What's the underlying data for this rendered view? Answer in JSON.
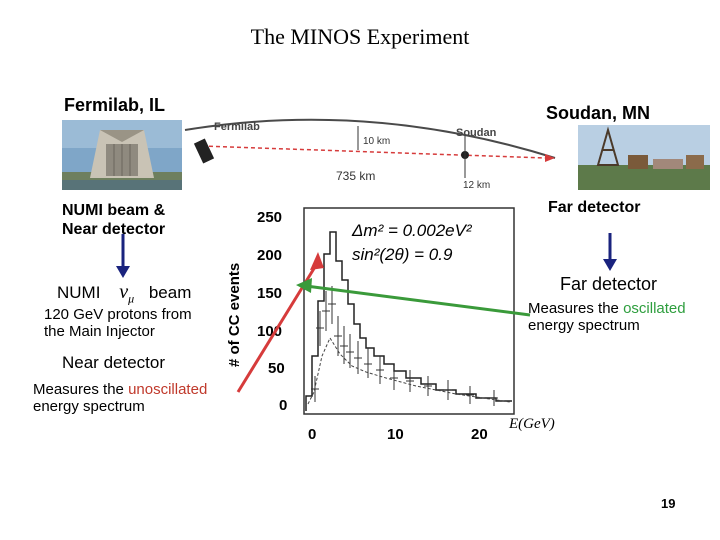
{
  "slide": {
    "title": "The MINOS Experiment",
    "page_number": "19"
  },
  "map": {
    "left_location": "Fermilab, IL",
    "right_location": "Soudan, MN",
    "label_fermilab": "Fermilab",
    "label_soudan": "Soudan",
    "label_depth_fermilab": "10 km",
    "label_depth_soudan": "12 km",
    "label_distance": "735 km"
  },
  "left_panel": {
    "heading_line1": "NUMI beam &",
    "heading_line2": "Near detector",
    "beam_prefix": "NUMI",
    "beam_symbol": "ν",
    "beam_subscript": "μ",
    "beam_suffix": "beam",
    "protons_line1": "120 GeV protons from",
    "protons_line2": "the Main Injector",
    "near_detector": "Near detector",
    "measures_prefix": "Measures the",
    "measures_highlight": "unoscillated",
    "measures_suffix": "energy spectrum"
  },
  "right_panel": {
    "heading": "Far detector",
    "subheading": "Far detector",
    "measures_prefix": "Measures the",
    "measures_highlight": "oscillated",
    "measures_suffix": "energy spectrum"
  },
  "plot": {
    "ylabel": "# of CC events",
    "xlabel": "E(GeV)",
    "formula_line1": "Δm² = 0.002eV²",
    "formula_line2": "sin²(2θ) = 0.9",
    "y_ticks": [
      "250",
      "200",
      "150",
      "100",
      "50",
      "0"
    ],
    "x_ticks": [
      "0",
      "10",
      "20"
    ]
  },
  "colors": {
    "red": "#c0392b",
    "green": "#2e9e3e",
    "arrow_blue": "#1a237e",
    "arrow_red": "#d63b3b",
    "arrow_green": "#3a9a3a"
  }
}
